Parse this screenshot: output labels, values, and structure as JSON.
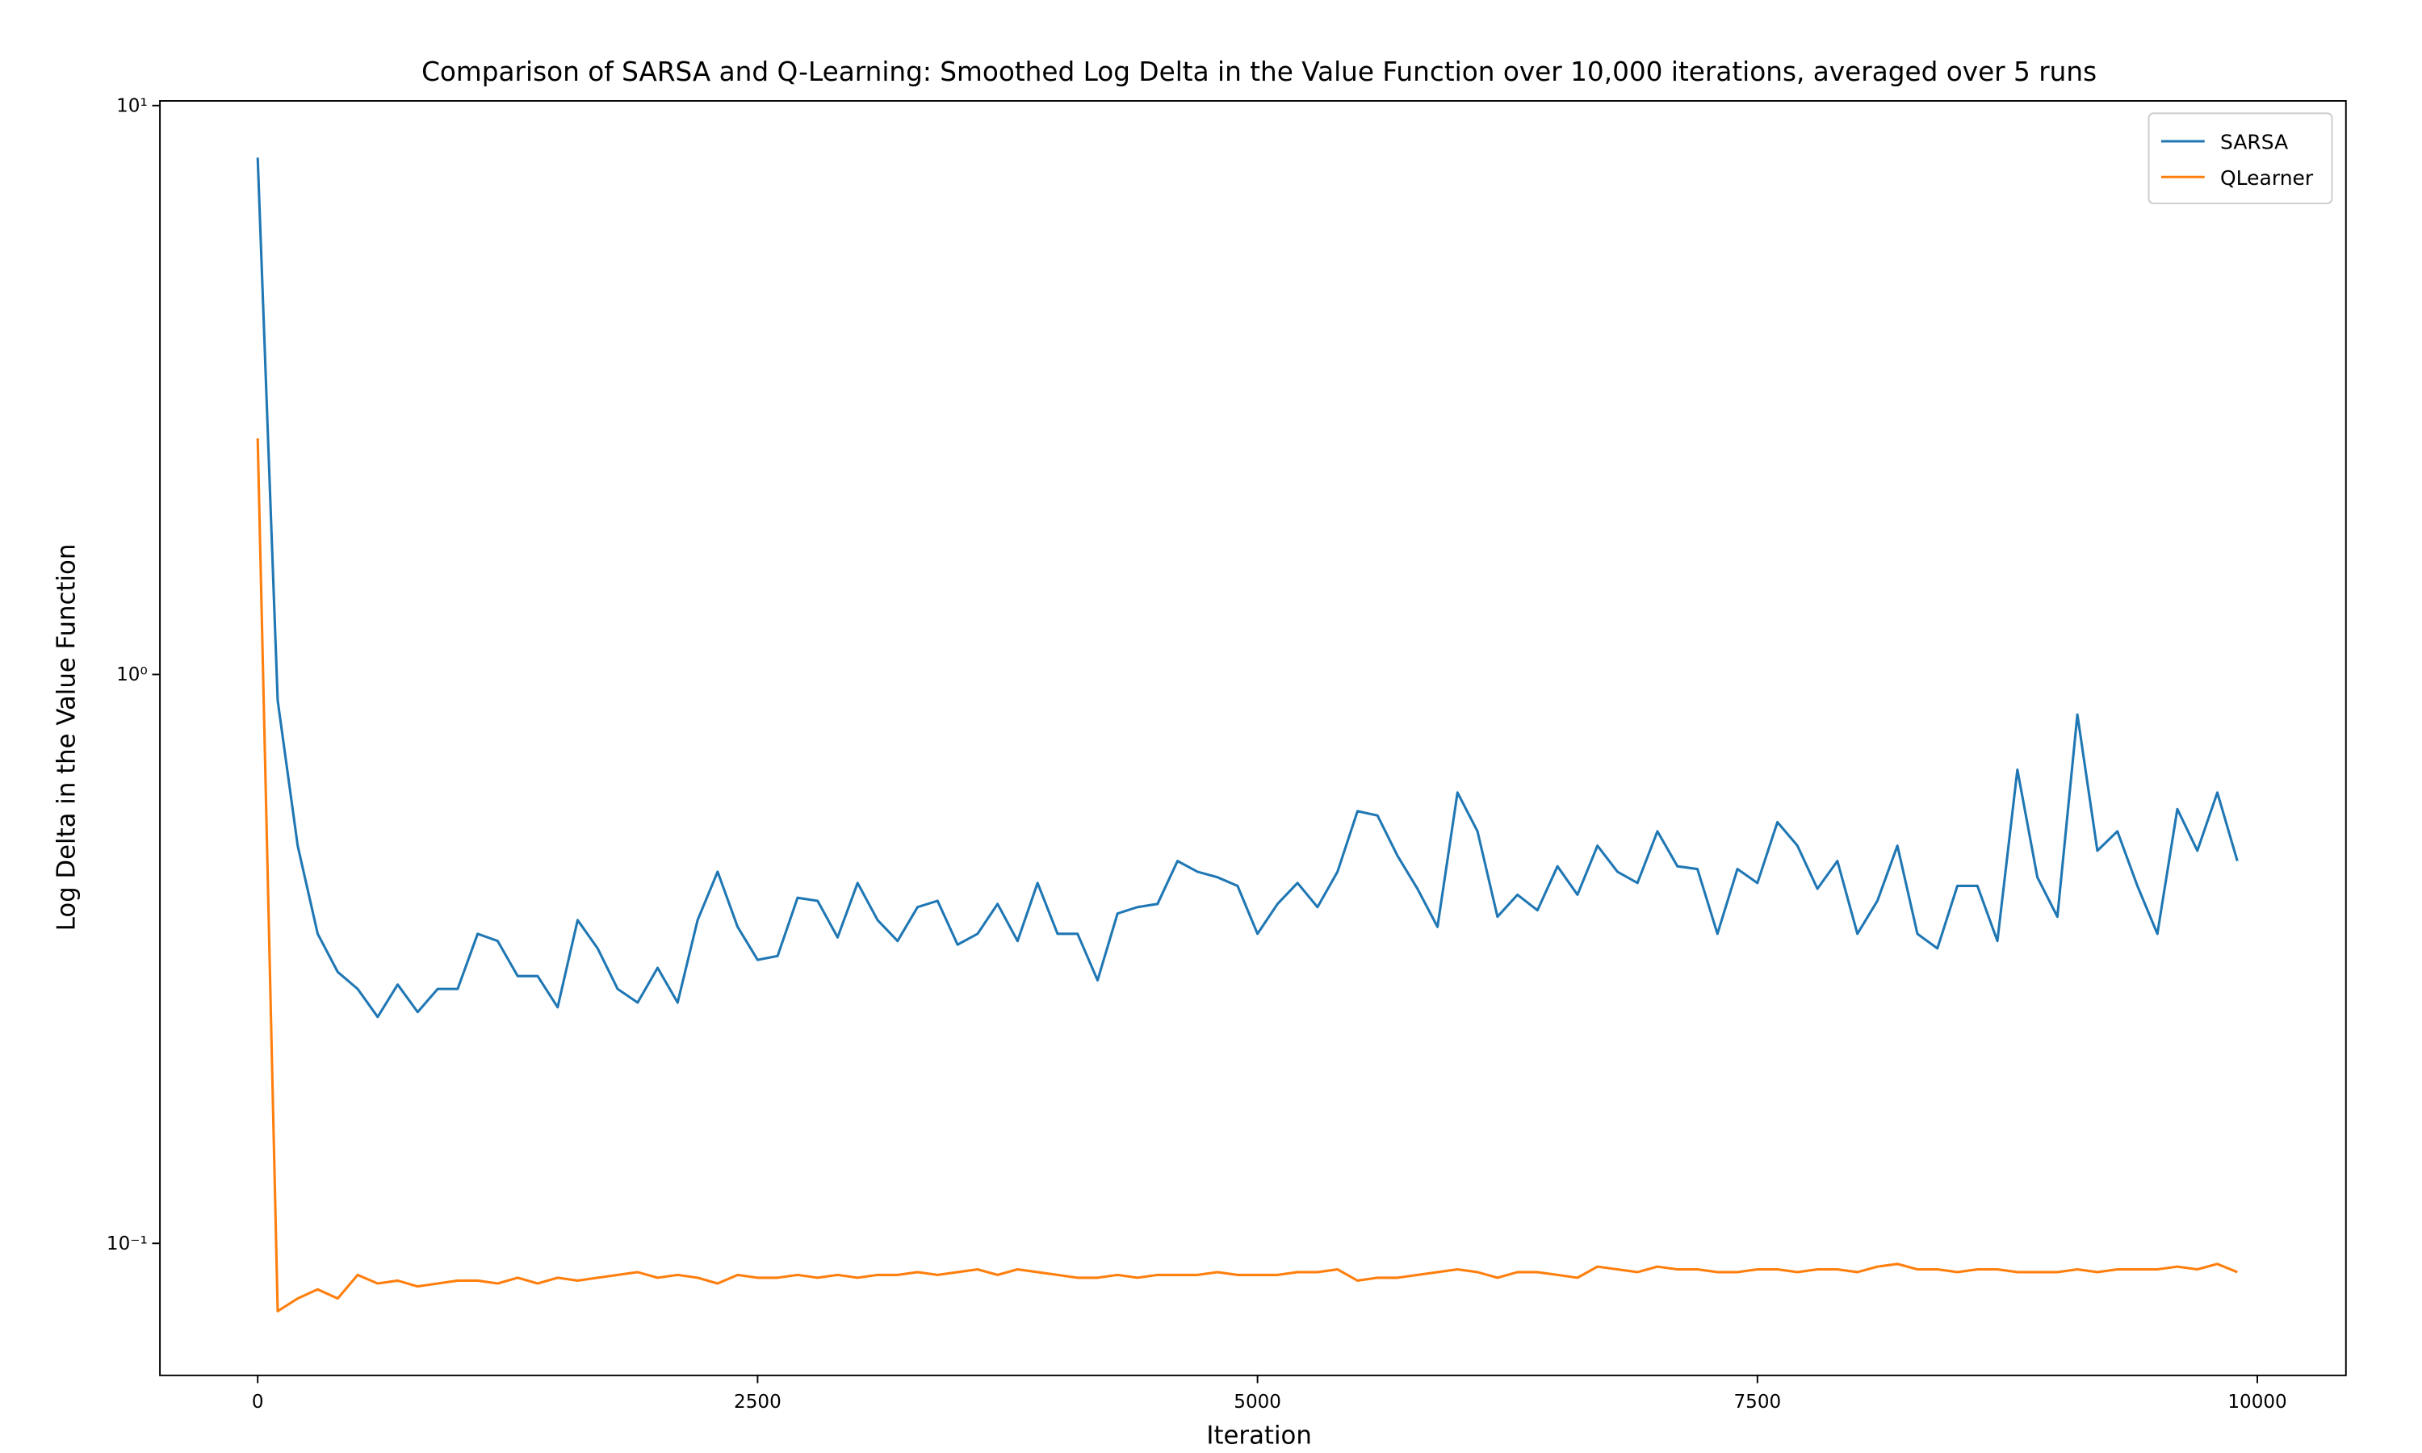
{
  "chart_data": {
    "type": "line",
    "title": "Comparison of SARSA and Q-Learning: Smoothed Log Delta in the Value Function over 10,000 iterations, averaged over 5 runs",
    "x_label": "Iteration",
    "y_label": "Log Delta in the Value Function",
    "log_y": true,
    "grid": false,
    "legend": "upper right",
    "xlim": [
      -489,
      10443
    ],
    "ylim": [
      0.0586,
      10.19
    ],
    "xticks": [
      0,
      2500,
      5000,
      7500,
      10000
    ],
    "yticks": [
      {
        "value": 0.1,
        "label": "10⁻¹"
      },
      {
        "value": 1,
        "label": "10⁰"
      },
      {
        "value": 10,
        "label": "10¹"
      }
    ],
    "x": [
      0,
      100,
      200,
      300,
      400,
      500,
      600,
      700,
      800,
      900,
      1000,
      1100,
      1200,
      1300,
      1400,
      1500,
      1600,
      1700,
      1800,
      1900,
      2000,
      2100,
      2200,
      2300,
      2400,
      2500,
      2600,
      2700,
      2800,
      2900,
      3000,
      3100,
      3200,
      3300,
      3400,
      3500,
      3600,
      3700,
      3800,
      3900,
      4000,
      4100,
      4200,
      4300,
      4400,
      4500,
      4600,
      4700,
      4800,
      4900,
      5000,
      5100,
      5200,
      5300,
      5400,
      5500,
      5600,
      5700,
      5800,
      5900,
      6000,
      6100,
      6200,
      6300,
      6400,
      6500,
      6600,
      6700,
      6800,
      6900,
      7000,
      7100,
      7200,
      7300,
      7400,
      7500,
      7600,
      7700,
      7800,
      7900,
      8000,
      8100,
      8200,
      8300,
      8400,
      8500,
      8600,
      8700,
      8800,
      8900,
      9000,
      9100,
      9200,
      9300,
      9400,
      9500,
      9600,
      9700,
      9800,
      9900
    ],
    "series": [
      {
        "name": "SARSA",
        "color": "#1f77b4",
        "values": [
          8.1,
          0.9,
          0.5,
          0.35,
          0.3,
          0.28,
          0.25,
          0.285,
          0.255,
          0.28,
          0.28,
          0.35,
          0.34,
          0.295,
          0.295,
          0.26,
          0.37,
          0.33,
          0.28,
          0.265,
          0.305,
          0.265,
          0.37,
          0.45,
          0.36,
          0.315,
          0.32,
          0.405,
          0.4,
          0.345,
          0.43,
          0.37,
          0.34,
          0.39,
          0.4,
          0.335,
          0.35,
          0.395,
          0.34,
          0.43,
          0.35,
          0.35,
          0.29,
          0.38,
          0.39,
          0.395,
          0.47,
          0.45,
          0.44,
          0.425,
          0.35,
          0.395,
          0.43,
          0.39,
          0.45,
          0.575,
          0.565,
          0.48,
          0.42,
          0.36,
          0.62,
          0.53,
          0.375,
          0.41,
          0.385,
          0.46,
          0.41,
          0.5,
          0.45,
          0.43,
          0.53,
          0.46,
          0.455,
          0.35,
          0.455,
          0.43,
          0.55,
          0.5,
          0.42,
          0.47,
          0.35,
          0.4,
          0.5,
          0.35,
          0.33,
          0.425,
          0.425,
          0.34,
          0.68,
          0.44,
          0.375,
          0.85,
          0.49,
          0.53,
          0.425,
          0.35,
          0.58,
          0.49,
          0.62,
          0.47
        ]
      },
      {
        "name": "QLearner",
        "color": "#ff7f0e",
        "values": [
          2.6,
          0.076,
          0.08,
          0.083,
          0.08,
          0.088,
          0.085,
          0.086,
          0.084,
          0.085,
          0.086,
          0.086,
          0.085,
          0.087,
          0.085,
          0.087,
          0.086,
          0.087,
          0.088,
          0.089,
          0.087,
          0.088,
          0.087,
          0.085,
          0.088,
          0.087,
          0.087,
          0.088,
          0.087,
          0.088,
          0.087,
          0.088,
          0.088,
          0.089,
          0.088,
          0.089,
          0.09,
          0.088,
          0.09,
          0.089,
          0.088,
          0.087,
          0.087,
          0.088,
          0.087,
          0.088,
          0.088,
          0.088,
          0.089,
          0.088,
          0.088,
          0.088,
          0.089,
          0.089,
          0.09,
          0.086,
          0.087,
          0.087,
          0.088,
          0.089,
          0.09,
          0.089,
          0.087,
          0.089,
          0.089,
          0.088,
          0.087,
          0.091,
          0.09,
          0.089,
          0.091,
          0.09,
          0.09,
          0.089,
          0.089,
          0.09,
          0.09,
          0.089,
          0.09,
          0.09,
          0.089,
          0.091,
          0.092,
          0.09,
          0.09,
          0.089,
          0.09,
          0.09,
          0.089,
          0.089,
          0.089,
          0.09,
          0.089,
          0.09,
          0.09,
          0.09,
          0.091,
          0.09,
          0.092,
          0.089
        ]
      }
    ]
  }
}
